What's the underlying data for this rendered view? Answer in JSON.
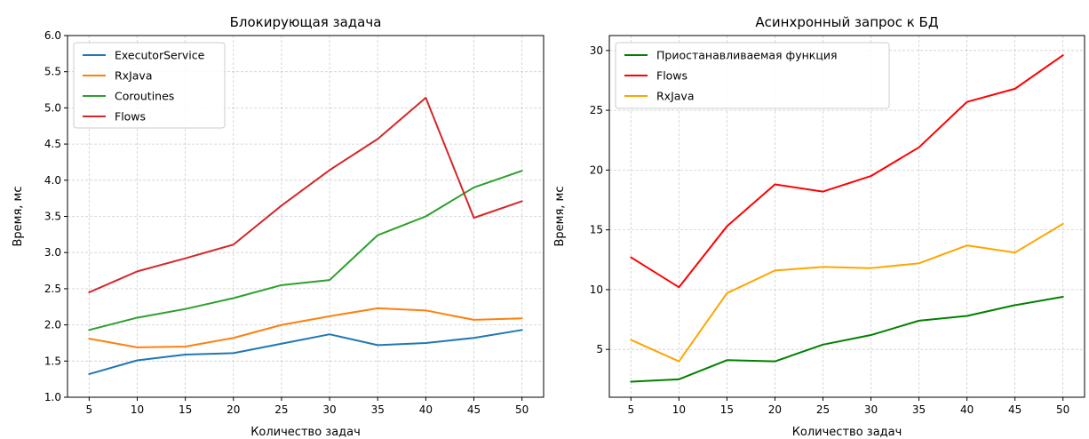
{
  "chart_data": [
    {
      "type": "line",
      "title": "Блокирующая задача",
      "xlabel": "Количество задач",
      "ylabel": "Время, мс",
      "x": [
        5,
        10,
        15,
        20,
        25,
        30,
        35,
        40,
        45,
        50
      ],
      "xlim": [
        2.75,
        52.25
      ],
      "ylim": [
        1.0,
        6.0
      ],
      "xticks": [
        5,
        10,
        15,
        20,
        25,
        30,
        35,
        40,
        45,
        50
      ],
      "yticks": [
        "1.0",
        "1.5",
        "2.0",
        "2.5",
        "3.0",
        "3.5",
        "4.0",
        "4.5",
        "5.0",
        "5.5",
        "6.0"
      ],
      "grid": true,
      "legend": "upper-left",
      "series": [
        {
          "name": "ExecutorService",
          "color": "#1f77b4",
          "values": [
            1.32,
            1.51,
            1.59,
            1.61,
            1.74,
            1.87,
            1.72,
            1.75,
            1.82,
            1.93
          ]
        },
        {
          "name": "RxJava",
          "color": "#ff7f0e",
          "values": [
            1.81,
            1.69,
            1.7,
            1.82,
            2.0,
            2.12,
            2.23,
            2.2,
            2.07,
            2.09
          ]
        },
        {
          "name": "Coroutines",
          "color": "#2ca02c",
          "values": [
            1.93,
            2.1,
            2.22,
            2.37,
            2.55,
            2.62,
            3.24,
            3.5,
            3.9,
            4.13
          ]
        },
        {
          "name": "Flows",
          "color": "#d62728",
          "values": [
            2.45,
            2.74,
            2.92,
            3.11,
            3.65,
            4.14,
            4.57,
            5.14,
            3.48,
            3.71
          ]
        }
      ]
    },
    {
      "type": "line",
      "title": "Асинхронный запрос к БД",
      "xlabel": "Количество задач",
      "ylabel": "Время, мс",
      "x": [
        5,
        10,
        15,
        20,
        25,
        30,
        35,
        40,
        45,
        50
      ],
      "xlim": [
        2.75,
        52.25
      ],
      "ylim": [
        1.0,
        31.25
      ],
      "xticks": [
        5,
        10,
        15,
        20,
        25,
        30,
        35,
        40,
        45,
        50
      ],
      "yticks": [
        "5",
        "10",
        "15",
        "20",
        "25",
        "30"
      ],
      "grid": true,
      "legend": "upper-left",
      "series": [
        {
          "name": "Приостанавливаемая функция",
          "color": "#008000",
          "values": [
            2.3,
            2.5,
            4.1,
            4.0,
            5.4,
            6.2,
            7.4,
            7.8,
            8.7,
            9.4
          ]
        },
        {
          "name": "Flows",
          "color": "#ff0000",
          "values": [
            12.7,
            10.2,
            15.3,
            18.8,
            18.2,
            19.5,
            21.9,
            25.7,
            26.8,
            29.6
          ]
        },
        {
          "name": "RxJava",
          "color": "#ffa500",
          "values": [
            5.8,
            4.0,
            9.7,
            11.6,
            11.9,
            11.8,
            12.2,
            13.7,
            13.1,
            15.5
          ]
        }
      ]
    }
  ]
}
